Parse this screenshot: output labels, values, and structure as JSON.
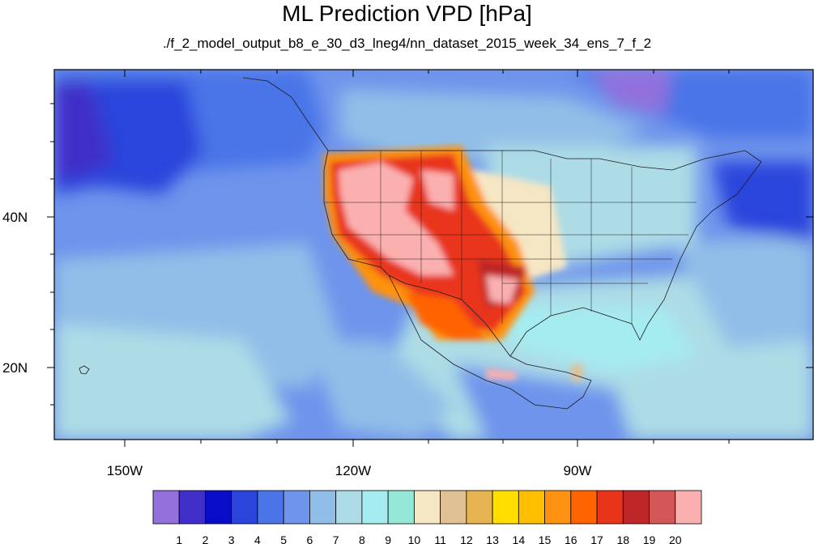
{
  "header": {
    "title": "ML Prediction VPD [hPa]",
    "subtitle": "./f_2_model_output_b8_e_30_d3_lneg4/nn_dataset_2015_week_34_ens_7_f_2"
  },
  "map": {
    "region": "Contiguous United States, Mexico and eastern North Pacific",
    "projection": "cylindrical equidistant",
    "lon_range": [
      -160,
      -64
    ],
    "lat_range": [
      11,
      60
    ],
    "lat_labels": [
      {
        "value": 40,
        "label": "40N"
      },
      {
        "value": 20,
        "label": "20N"
      }
    ],
    "lon_labels": [
      {
        "value": -150,
        "label": "150W"
      },
      {
        "value": -120,
        "label": "120W"
      },
      {
        "value": -90,
        "label": "90W"
      }
    ],
    "features": [
      "coastlines",
      "US state borders",
      "Mexico border"
    ]
  },
  "colorbar": {
    "tick_labels": [
      "1",
      "2",
      "3",
      "4",
      "5",
      "6",
      "7",
      "8",
      "9",
      "10",
      "11",
      "12",
      "13",
      "14",
      "15",
      "16",
      "17",
      "18",
      "19",
      "20"
    ],
    "colors": [
      "#9370DB",
      "#3F2FC8",
      "#0A0DC8",
      "#2B45DC",
      "#4A74E8",
      "#6E94EC",
      "#91BEE8",
      "#ADDCE6",
      "#A5ECF0",
      "#95E8D8",
      "#F5E6C4",
      "#E0C194",
      "#E6B450",
      "#FFDE00",
      "#FFBE00",
      "#FF9210",
      "#FF6400",
      "#E8351A",
      "#BE2628",
      "#D45757",
      "#FBB0B0"
    ]
  }
}
